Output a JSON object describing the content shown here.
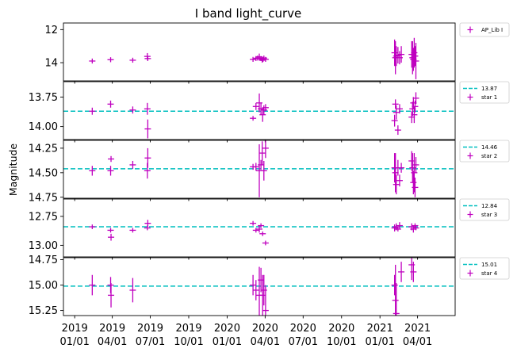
{
  "chart_data": {
    "type": "scatter",
    "title": "I band light_curve",
    "xlabel": "",
    "ylabel": "Magnitude",
    "x_axis": {
      "type": "date",
      "range": [
        "2018-12-05",
        "2021-06-30"
      ],
      "ticks": [
        {
          "date": "2019-01-01",
          "label": [
            "2019",
            "01/01"
          ]
        },
        {
          "date": "2019-04-01",
          "label": [
            "2019",
            "04/01"
          ]
        },
        {
          "date": "2019-07-01",
          "label": [
            "2019",
            "07/01"
          ]
        },
        {
          "date": "2019-10-01",
          "label": [
            "2019",
            "10/01"
          ]
        },
        {
          "date": "2020-01-01",
          "label": [
            "2020",
            "01/01"
          ]
        },
        {
          "date": "2020-04-01",
          "label": [
            "2020",
            "04/01"
          ]
        },
        {
          "date": "2020-07-01",
          "label": [
            "2020",
            "07/01"
          ]
        },
        {
          "date": "2020-10-01",
          "label": [
            "2020",
            "10/01"
          ]
        },
        {
          "date": "2021-01-01",
          "label": [
            "2021",
            "01/01"
          ]
        },
        {
          "date": "2021-04-01",
          "label": [
            "2021",
            "04/01"
          ]
        }
      ]
    },
    "colors": {
      "points": "#bf00bf",
      "reference_line": "#00bfbf"
    },
    "grid": false,
    "legend_position": "outside-right",
    "panels": [
      {
        "name": "AP_Lib I",
        "legend": [
          "AP_Lib I"
        ],
        "ylim": [
          15.1,
          11.6
        ],
        "inverted": true,
        "yticks": [
          {
            "v": 12,
            "label": "12"
          },
          {
            "v": 14,
            "label": "14"
          }
        ],
        "points": [
          {
            "x": "2019-02-12",
            "y": 13.9,
            "err": 0.15
          },
          {
            "x": "2019-03-28",
            "y": 13.82,
            "err": 0.15
          },
          {
            "x": "2019-05-20",
            "y": 13.85,
            "err": 0.15
          },
          {
            "x": "2019-06-24",
            "y": 13.62,
            "err": 0.2
          },
          {
            "x": "2019-06-25",
            "y": 13.75,
            "err": 0.15
          },
          {
            "x": "2020-03-03",
            "y": 13.8,
            "err": 0.15
          },
          {
            "x": "2020-03-10",
            "y": 13.75,
            "err": 0.15
          },
          {
            "x": "2020-03-14",
            "y": 13.72,
            "err": 0.15
          },
          {
            "x": "2020-03-18",
            "y": 13.65,
            "err": 0.2
          },
          {
            "x": "2020-03-22",
            "y": 13.75,
            "err": 0.15
          },
          {
            "x": "2020-03-25",
            "y": 13.85,
            "err": 0.15
          },
          {
            "x": "2020-03-27",
            "y": 13.8,
            "err": 0.15
          },
          {
            "x": "2020-03-29",
            "y": 13.72,
            "err": 0.15
          },
          {
            "x": "2020-04-02",
            "y": 13.8,
            "err": 0.15
          },
          {
            "x": "2021-02-05",
            "y": 13.4,
            "err": 0.8
          },
          {
            "x": "2021-02-07",
            "y": 13.7,
            "err": 1.0
          },
          {
            "x": "2021-02-09",
            "y": 13.6,
            "err": 0.6
          },
          {
            "x": "2021-02-13",
            "y": 13.55,
            "err": 0.5
          },
          {
            "x": "2021-02-17",
            "y": 13.7,
            "err": 0.4
          },
          {
            "x": "2021-02-21",
            "y": 13.5,
            "err": 0.5
          },
          {
            "x": "2021-03-18",
            "y": 13.5,
            "err": 0.8
          },
          {
            "x": "2021-03-20",
            "y": 13.7,
            "err": 1.0
          },
          {
            "x": "2021-03-22",
            "y": 13.8,
            "err": 0.7
          },
          {
            "x": "2021-03-24",
            "y": 13.4,
            "err": 0.9
          },
          {
            "x": "2021-03-26",
            "y": 13.6,
            "err": 0.6
          },
          {
            "x": "2021-03-28",
            "y": 13.9,
            "err": 1.1
          }
        ]
      },
      {
        "name": "star 1",
        "legend": [
          "13.87",
          "star 1"
        ],
        "reference": 13.87,
        "ylim": [
          14.11,
          13.62
        ],
        "inverted": true,
        "yticks": [
          {
            "v": 13.75,
            "label": "13.75"
          },
          {
            "v": 14.0,
            "label": "14.00"
          }
        ],
        "points": [
          {
            "x": "2019-02-12",
            "y": 13.87,
            "err": 0.03
          },
          {
            "x": "2019-03-28",
            "y": 13.81,
            "err": 0.03
          },
          {
            "x": "2019-05-20",
            "y": 13.86,
            "err": 0.03
          },
          {
            "x": "2019-06-24",
            "y": 13.85,
            "err": 0.05
          },
          {
            "x": "2019-06-25",
            "y": 14.02,
            "err": 0.08
          },
          {
            "x": "2020-03-03",
            "y": 13.93,
            "err": 0.02
          },
          {
            "x": "2020-03-10",
            "y": 13.83,
            "err": 0.03
          },
          {
            "x": "2020-03-18",
            "y": 13.8,
            "err": 0.08
          },
          {
            "x": "2020-03-22",
            "y": 13.85,
            "err": 0.05
          },
          {
            "x": "2020-03-26",
            "y": 13.9,
            "err": 0.06
          },
          {
            "x": "2020-03-29",
            "y": 13.86,
            "err": 0.04
          },
          {
            "x": "2020-04-02",
            "y": 13.84,
            "err": 0.03
          },
          {
            "x": "2021-02-05",
            "y": 13.95,
            "err": 0.05
          },
          {
            "x": "2021-02-07",
            "y": 13.81,
            "err": 0.04
          },
          {
            "x": "2021-02-09",
            "y": 13.88,
            "err": 0.06
          },
          {
            "x": "2021-02-13",
            "y": 14.03,
            "err": 0.04
          },
          {
            "x": "2021-02-17",
            "y": 13.85,
            "err": 0.04
          },
          {
            "x": "2021-03-18",
            "y": 13.92,
            "err": 0.05
          },
          {
            "x": "2021-03-20",
            "y": 13.85,
            "err": 0.06
          },
          {
            "x": "2021-03-22",
            "y": 13.8,
            "err": 0.05
          },
          {
            "x": "2021-03-24",
            "y": 13.9,
            "err": 0.07
          },
          {
            "x": "2021-03-26",
            "y": 13.83,
            "err": 0.05
          },
          {
            "x": "2021-03-28",
            "y": 13.76,
            "err": 0.05
          }
        ]
      },
      {
        "name": "star 2",
        "legend": [
          "14.46",
          "star 2"
        ],
        "reference": 14.46,
        "ylim": [
          14.76,
          14.17
        ],
        "inverted": true,
        "yticks": [
          {
            "v": 14.25,
            "label": "14.25"
          },
          {
            "v": 14.5,
            "label": "14.50"
          },
          {
            "v": 14.75,
            "label": "14.75"
          }
        ],
        "points": [
          {
            "x": "2019-02-12",
            "y": 14.48,
            "err": 0.05
          },
          {
            "x": "2019-03-28",
            "y": 14.48,
            "err": 0.05
          },
          {
            "x": "2019-03-29",
            "y": 14.36,
            "err": 0.03
          },
          {
            "x": "2019-05-20",
            "y": 14.42,
            "err": 0.04
          },
          {
            "x": "2019-06-24",
            "y": 14.48,
            "err": 0.08
          },
          {
            "x": "2019-06-25",
            "y": 14.35,
            "err": 0.1
          },
          {
            "x": "2020-03-03",
            "y": 14.44,
            "err": 0.03
          },
          {
            "x": "2020-03-10",
            "y": 14.44,
            "err": 0.04
          },
          {
            "x": "2020-03-18",
            "y": 14.48,
            "err": 0.27
          },
          {
            "x": "2020-03-22",
            "y": 14.42,
            "err": 0.05
          },
          {
            "x": "2020-03-25",
            "y": 14.3,
            "err": 0.12
          },
          {
            "x": "2020-03-29",
            "y": 14.48,
            "err": 0.1
          },
          {
            "x": "2020-04-02",
            "y": 14.25,
            "err": 0.1
          },
          {
            "x": "2021-02-05",
            "y": 14.45,
            "err": 0.15
          },
          {
            "x": "2021-02-07",
            "y": 14.5,
            "err": 0.2
          },
          {
            "x": "2021-02-09",
            "y": 14.62,
            "err": 0.1
          },
          {
            "x": "2021-02-13",
            "y": 14.45,
            "err": 0.08
          },
          {
            "x": "2021-02-17",
            "y": 14.58,
            "err": 0.06
          },
          {
            "x": "2021-02-21",
            "y": 14.45,
            "err": 0.05
          },
          {
            "x": "2021-03-18",
            "y": 14.38,
            "err": 0.1
          },
          {
            "x": "2021-03-20",
            "y": 14.45,
            "err": 0.15
          },
          {
            "x": "2021-03-22",
            "y": 14.6,
            "err": 0.12
          },
          {
            "x": "2021-03-24",
            "y": 14.5,
            "err": 0.2
          },
          {
            "x": "2021-03-26",
            "y": 14.65,
            "err": 0.1
          },
          {
            "x": "2021-03-28",
            "y": 14.42,
            "err": 0.08
          }
        ]
      },
      {
        "name": "star 3",
        "legend": [
          "12.84",
          "star 3"
        ],
        "reference": 12.84,
        "ylim": [
          13.1,
          12.6
        ],
        "inverted": true,
        "yticks": [
          {
            "v": 12.75,
            "label": "12.75"
          },
          {
            "v": 13.0,
            "label": "13.00"
          }
        ],
        "points": [
          {
            "x": "2019-02-12",
            "y": 12.84,
            "err": 0.02
          },
          {
            "x": "2019-03-28",
            "y": 12.87,
            "err": 0.02
          },
          {
            "x": "2019-03-29",
            "y": 12.93,
            "err": 0.03
          },
          {
            "x": "2019-05-20",
            "y": 12.87,
            "err": 0.02
          },
          {
            "x": "2019-06-24",
            "y": 12.85,
            "err": 0.02
          },
          {
            "x": "2019-06-25",
            "y": 12.81,
            "err": 0.03
          },
          {
            "x": "2020-03-03",
            "y": 12.81,
            "err": 0.02
          },
          {
            "x": "2020-03-10",
            "y": 12.87,
            "err": 0.02
          },
          {
            "x": "2020-03-18",
            "y": 12.86,
            "err": 0.03
          },
          {
            "x": "2020-03-22",
            "y": 12.83,
            "err": 0.02
          },
          {
            "x": "2020-03-26",
            "y": 12.9,
            "err": 0.02
          },
          {
            "x": "2020-04-02",
            "y": 12.98,
            "err": 0.02
          },
          {
            "x": "2021-02-05",
            "y": 12.85,
            "err": 0.03
          },
          {
            "x": "2021-02-09",
            "y": 12.84,
            "err": 0.03
          },
          {
            "x": "2021-02-13",
            "y": 12.86,
            "err": 0.02
          },
          {
            "x": "2021-02-17",
            "y": 12.83,
            "err": 0.03
          },
          {
            "x": "2021-03-18",
            "y": 12.84,
            "err": 0.03
          },
          {
            "x": "2021-03-22",
            "y": 12.86,
            "err": 0.03
          },
          {
            "x": "2021-03-26",
            "y": 12.83,
            "err": 0.02
          },
          {
            "x": "2021-03-28",
            "y": 12.85,
            "err": 0.02
          }
        ]
      },
      {
        "name": "star 4",
        "legend": [
          "15.01",
          "star 4"
        ],
        "reference": 15.01,
        "ylim": [
          15.3,
          14.73
        ],
        "inverted": true,
        "yticks": [
          {
            "v": 14.75,
            "label": "14.75"
          },
          {
            "v": 15.0,
            "label": "15.00"
          },
          {
            "v": 15.25,
            "label": "15.25"
          }
        ],
        "points": [
          {
            "x": "2019-02-12",
            "y": 15.0,
            "err": 0.1
          },
          {
            "x": "2019-03-28",
            "y": 15.0,
            "err": 0.08
          },
          {
            "x": "2019-03-29",
            "y": 15.1,
            "err": 0.12
          },
          {
            "x": "2019-05-20",
            "y": 15.05,
            "err": 0.12
          },
          {
            "x": "2020-03-03",
            "y": 15.0,
            "err": 0.1
          },
          {
            "x": "2020-03-10",
            "y": 15.05,
            "err": 0.1
          },
          {
            "x": "2020-03-18",
            "y": 15.1,
            "err": 0.28
          },
          {
            "x": "2020-03-22",
            "y": 14.95,
            "err": 0.12
          },
          {
            "x": "2020-03-26",
            "y": 15.1,
            "err": 0.2
          },
          {
            "x": "2020-03-29",
            "y": 15.05,
            "err": 0.15
          },
          {
            "x": "2020-04-02",
            "y": 15.25,
            "err": 0.25
          },
          {
            "x": "2021-02-05",
            "y": 15.0,
            "err": 0.1
          },
          {
            "x": "2021-02-07",
            "y": 15.15,
            "err": 0.35
          },
          {
            "x": "2021-02-09",
            "y": 15.28,
            "err": 0.3
          },
          {
            "x": "2021-02-21",
            "y": 14.87,
            "err": 0.1
          },
          {
            "x": "2021-03-18",
            "y": 14.8,
            "err": 0.15
          },
          {
            "x": "2021-03-22",
            "y": 14.87,
            "err": 0.1
          }
        ]
      }
    ]
  }
}
